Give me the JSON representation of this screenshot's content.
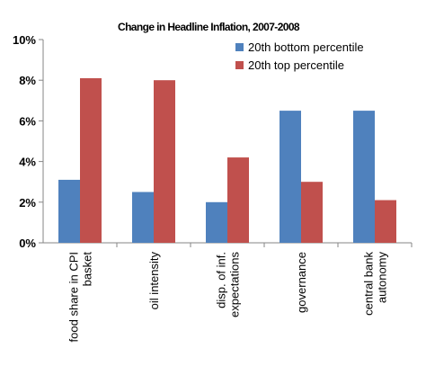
{
  "chart_data": {
    "type": "bar",
    "title": "Change in Headline Inflation, 2007-2008",
    "xlabel": "",
    "ylabel": "",
    "ylim": [
      0,
      10
    ],
    "y_ticks": [
      "0%",
      "2%",
      "4%",
      "6%",
      "8%",
      "10%"
    ],
    "grid": false,
    "legend_position": "top-right",
    "categories": [
      [
        "food share in CPI",
        "basket"
      ],
      [
        "oil intensity"
      ],
      [
        "disp. of inf.",
        "expectations"
      ],
      [
        "governance"
      ],
      [
        "central bank",
        "autonomy"
      ]
    ],
    "series": [
      {
        "name": "20th bottom percentile",
        "color": "#4F81BD",
        "values": [
          3.1,
          2.5,
          2.0,
          6.5,
          6.5
        ]
      },
      {
        "name": "20th top percentile",
        "color": "#C0504D",
        "values": [
          8.1,
          8.0,
          4.2,
          3.0,
          2.1
        ]
      }
    ]
  }
}
